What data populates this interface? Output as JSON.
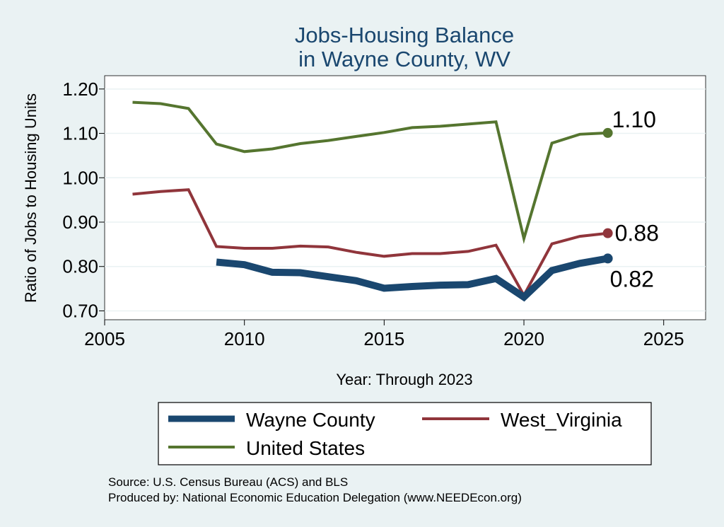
{
  "chart_data": {
    "type": "line",
    "title": [
      "Jobs-Housing Balance",
      "in Wayne County, WV"
    ],
    "xlabel": "Year: Through 2023",
    "ylabel": "Ratio of Jobs to Housing Units",
    "xlim": [
      2005,
      2026.5
    ],
    "ylim": [
      0.68,
      1.23
    ],
    "xticks": [
      2005,
      2010,
      2015,
      2020,
      2025
    ],
    "yticks": [
      0.7,
      0.8,
      0.9,
      1.0,
      1.1,
      1.2
    ],
    "ytick_labels": [
      "0.70",
      "0.80",
      "0.90",
      "1.00",
      "1.10",
      "1.20"
    ],
    "grid": "horizontal",
    "legend_position": "bottom",
    "series": [
      {
        "name": "Wayne County",
        "color": "#1a476f",
        "width": "thick",
        "x": [
          2009,
          2010,
          2011,
          2012,
          2013,
          2014,
          2015,
          2016,
          2017,
          2018,
          2019,
          2020,
          2021,
          2022,
          2023
        ],
        "y": [
          0.81,
          0.804,
          0.787,
          0.786,
          0.777,
          0.768,
          0.751,
          0.755,
          0.758,
          0.759,
          0.773,
          0.731,
          0.791,
          0.807,
          0.818
        ],
        "end_label": "0.82"
      },
      {
        "name": "West_Virginia",
        "color": "#90353b",
        "width": "medium",
        "x": [
          2006,
          2007,
          2008,
          2009,
          2010,
          2011,
          2012,
          2013,
          2014,
          2015,
          2016,
          2017,
          2018,
          2019,
          2020,
          2021,
          2022,
          2023
        ],
        "y": [
          0.963,
          0.969,
          0.973,
          0.845,
          0.841,
          0.841,
          0.846,
          0.844,
          0.832,
          0.823,
          0.829,
          0.829,
          0.834,
          0.848,
          0.735,
          0.851,
          0.868,
          0.875
        ],
        "end_label": "0.88"
      },
      {
        "name": "United States",
        "color": "#55752f",
        "width": "medium",
        "x": [
          2006,
          2007,
          2008,
          2009,
          2010,
          2011,
          2012,
          2013,
          2014,
          2015,
          2016,
          2017,
          2018,
          2019,
          2020,
          2021,
          2022,
          2023
        ],
        "y": [
          1.17,
          1.167,
          1.156,
          1.076,
          1.059,
          1.065,
          1.077,
          1.084,
          1.093,
          1.102,
          1.113,
          1.116,
          1.121,
          1.126,
          0.863,
          1.078,
          1.098,
          1.101
        ],
        "end_label": "1.10"
      }
    ]
  },
  "footer": {
    "source": "Source: U.S. Census Bureau (ACS) and BLS",
    "produced_by": "Produced by: National Economic Education Delegation (www.NEEDEcon.org)"
  }
}
